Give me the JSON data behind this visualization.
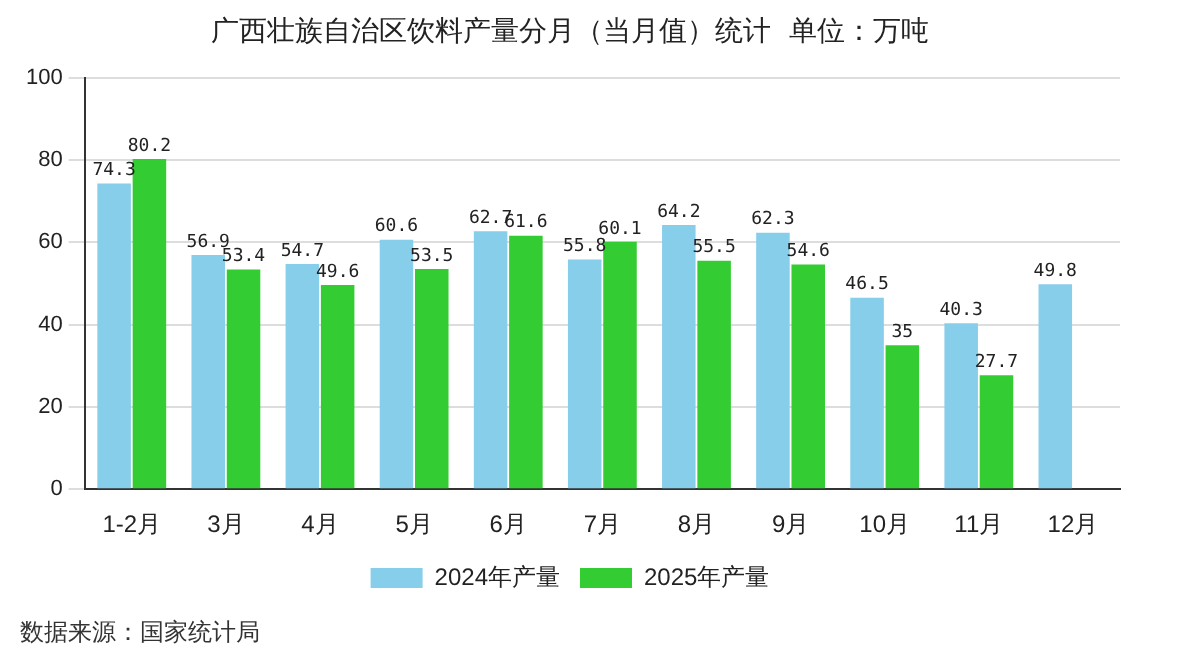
{
  "chart_data": {
    "type": "bar",
    "title": "广西壮族自治区饮料产量分月（当月值）统计  单位：万吨",
    "categories": [
      "1-2月",
      "3月",
      "4月",
      "5月",
      "6月",
      "7月",
      "8月",
      "9月",
      "10月",
      "11月",
      "12月"
    ],
    "series": [
      {
        "name": "2024年产量",
        "color": "#87ceeb",
        "values": [
          74.3,
          56.9,
          54.7,
          60.6,
          62.7,
          55.8,
          64.2,
          62.3,
          46.5,
          40.3,
          49.8
        ]
      },
      {
        "name": "2025年产量",
        "color": "#33cc33",
        "values": [
          80.2,
          53.4,
          49.6,
          53.5,
          61.6,
          60.1,
          55.5,
          54.6,
          35,
          27.7,
          null
        ]
      }
    ],
    "ylim": [
      0,
      100
    ],
    "yticks": [
      0,
      20,
      40,
      60,
      80,
      100
    ],
    "grid": "y",
    "legend": "bottom",
    "data_labels": true,
    "annotations": [
      "数据来源：国家统计局"
    ]
  }
}
